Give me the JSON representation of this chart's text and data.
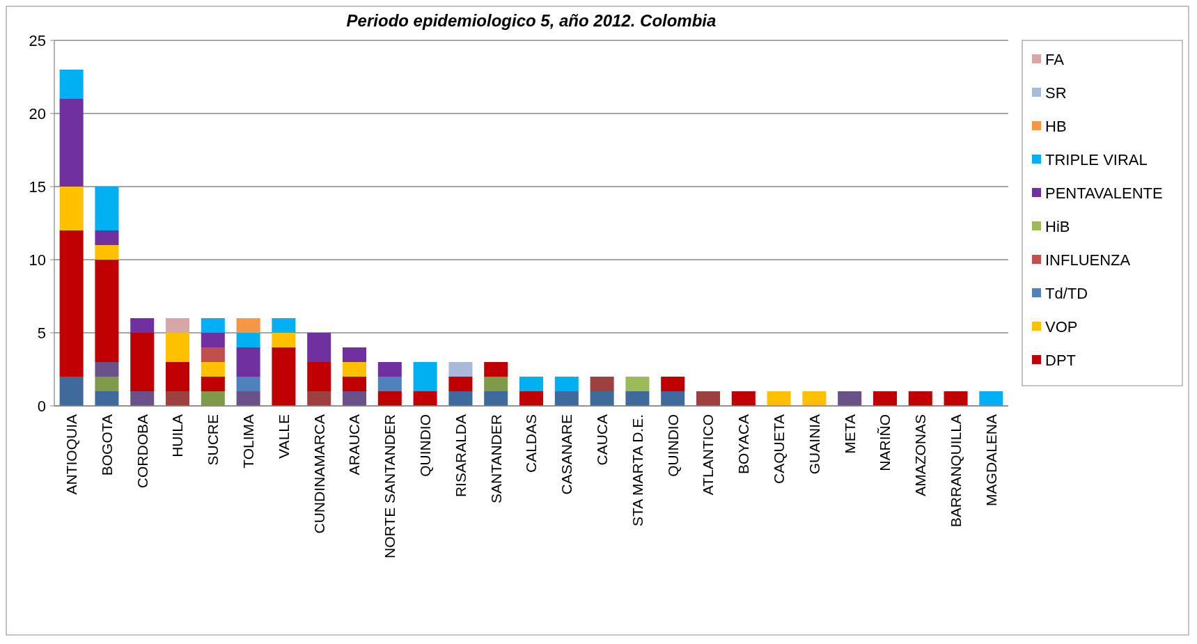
{
  "chart_data": {
    "type": "bar",
    "stacked": true,
    "title": "Periodo epidemiologico 5, año 2012. Colombia",
    "categories": [
      "ANTIOQUIA",
      "BOGOTA",
      "CORDOBA",
      "HUILA",
      "SUCRE",
      "TOLIMA",
      "VALLE",
      "CUNDINAMARCA",
      "ARAUCA",
      "NORTE SANTANDER",
      "QUINDIO",
      "RISARALDA",
      "SANTANDER",
      "CALDAS",
      "CASANARE",
      "CAUCA",
      "STA MARTA D.E.",
      "QUINDIO",
      "ATLANTICO",
      "BOYACA",
      "CAQUETA",
      "GUAINIA",
      "META",
      "NARIÑO",
      "AMAZONAS",
      "BARRANQUILLA",
      "MAGDALENA"
    ],
    "series": [
      {
        "color": "#3f6a9c",
        "values": [
          2,
          1,
          0,
          0,
          0,
          0,
          0,
          0,
          0,
          0,
          0,
          1,
          1,
          0,
          1,
          1,
          1,
          1,
          0,
          0,
          0,
          0,
          0,
          0,
          0,
          0,
          0
        ]
      },
      {
        "color": "#7f9a48",
        "values": [
          0,
          1,
          0,
          0,
          1,
          0,
          0,
          0,
          0,
          0,
          0,
          0,
          1,
          0,
          0,
          0,
          0,
          0,
          0,
          0,
          0,
          0,
          0,
          0,
          0,
          0,
          0
        ]
      },
      {
        "color": "#9e403f",
        "values": [
          0,
          0,
          0,
          1,
          0,
          0,
          0,
          1,
          0,
          0,
          0,
          0,
          0,
          0,
          0,
          1,
          0,
          0,
          1,
          0,
          0,
          0,
          0,
          0,
          0,
          0,
          0
        ]
      },
      {
        "color": "#6a5289",
        "values": [
          0,
          1,
          1,
          0,
          0,
          1,
          0,
          0,
          1,
          0,
          0,
          0,
          0,
          0,
          0,
          0,
          0,
          0,
          0,
          0,
          0,
          0,
          1,
          0,
          0,
          0,
          0
        ]
      },
      {
        "name": "DPT",
        "color": "#c00000",
        "values": [
          10,
          7,
          4,
          2,
          1,
          0,
          4,
          2,
          1,
          1,
          1,
          1,
          1,
          1,
          0,
          0,
          0,
          1,
          0,
          1,
          0,
          0,
          0,
          1,
          1,
          1,
          0
        ]
      },
      {
        "name": "VOP",
        "color": "#ffc000",
        "values": [
          3,
          1,
          0,
          2,
          1,
          0,
          1,
          0,
          1,
          0,
          0,
          0,
          0,
          0,
          0,
          0,
          0,
          0,
          0,
          0,
          1,
          1,
          0,
          0,
          0,
          0,
          0
        ]
      },
      {
        "name": "Td/TD",
        "color": "#4f81bd",
        "values": [
          0,
          0,
          0,
          0,
          0,
          1,
          0,
          0,
          0,
          1,
          0,
          0,
          0,
          0,
          0,
          0,
          0,
          0,
          0,
          0,
          0,
          0,
          0,
          0,
          0,
          0,
          0
        ]
      },
      {
        "name": "INFLUENZA",
        "color": "#c0504d",
        "values": [
          0,
          0,
          0,
          0,
          1,
          0,
          0,
          0,
          0,
          0,
          0,
          0,
          0,
          0,
          0,
          0,
          0,
          0,
          0,
          0,
          0,
          0,
          0,
          0,
          0,
          0,
          0
        ]
      },
      {
        "name": "HiB",
        "color": "#9bbb59",
        "values": [
          0,
          0,
          0,
          0,
          0,
          0,
          0,
          0,
          0,
          0,
          0,
          0,
          0,
          0,
          0,
          0,
          1,
          0,
          0,
          0,
          0,
          0,
          0,
          0,
          0,
          0,
          0
        ]
      },
      {
        "name": "PENTAVALENTE",
        "color": "#7030a0",
        "values": [
          6,
          1,
          1,
          0,
          1,
          2,
          0,
          2,
          1,
          1,
          0,
          0,
          0,
          0,
          0,
          0,
          0,
          0,
          0,
          0,
          0,
          0,
          0,
          0,
          0,
          0,
          0
        ]
      },
      {
        "name": "TRIPLE VIRAL",
        "color": "#00b0f0",
        "values": [
          2,
          3,
          0,
          0,
          1,
          1,
          1,
          0,
          0,
          0,
          2,
          0,
          0,
          1,
          1,
          0,
          0,
          0,
          0,
          0,
          0,
          0,
          0,
          0,
          0,
          0,
          1
        ]
      },
      {
        "name": "HB",
        "color": "#f79646",
        "values": [
          0,
          0,
          0,
          0,
          0,
          1,
          0,
          0,
          0,
          0,
          0,
          0,
          0,
          0,
          0,
          0,
          0,
          0,
          0,
          0,
          0,
          0,
          0,
          0,
          0,
          0,
          0
        ]
      },
      {
        "name": "SR",
        "color": "#a9bad8",
        "values": [
          0,
          0,
          0,
          0,
          0,
          0,
          0,
          0,
          0,
          0,
          0,
          1,
          0,
          0,
          0,
          0,
          0,
          0,
          0,
          0,
          0,
          0,
          0,
          0,
          0,
          0,
          0
        ]
      },
      {
        "name": "FA",
        "color": "#d9a6a6",
        "values": [
          0,
          0,
          0,
          1,
          0,
          0,
          0,
          0,
          0,
          0,
          0,
          0,
          0,
          0,
          0,
          0,
          0,
          0,
          0,
          0,
          0,
          0,
          0,
          0,
          0,
          0,
          0
        ]
      }
    ],
    "ylim": [
      0,
      25
    ],
    "yticks": [
      0,
      5,
      10,
      15,
      20,
      25
    ],
    "grid": "y",
    "legend": "right"
  }
}
